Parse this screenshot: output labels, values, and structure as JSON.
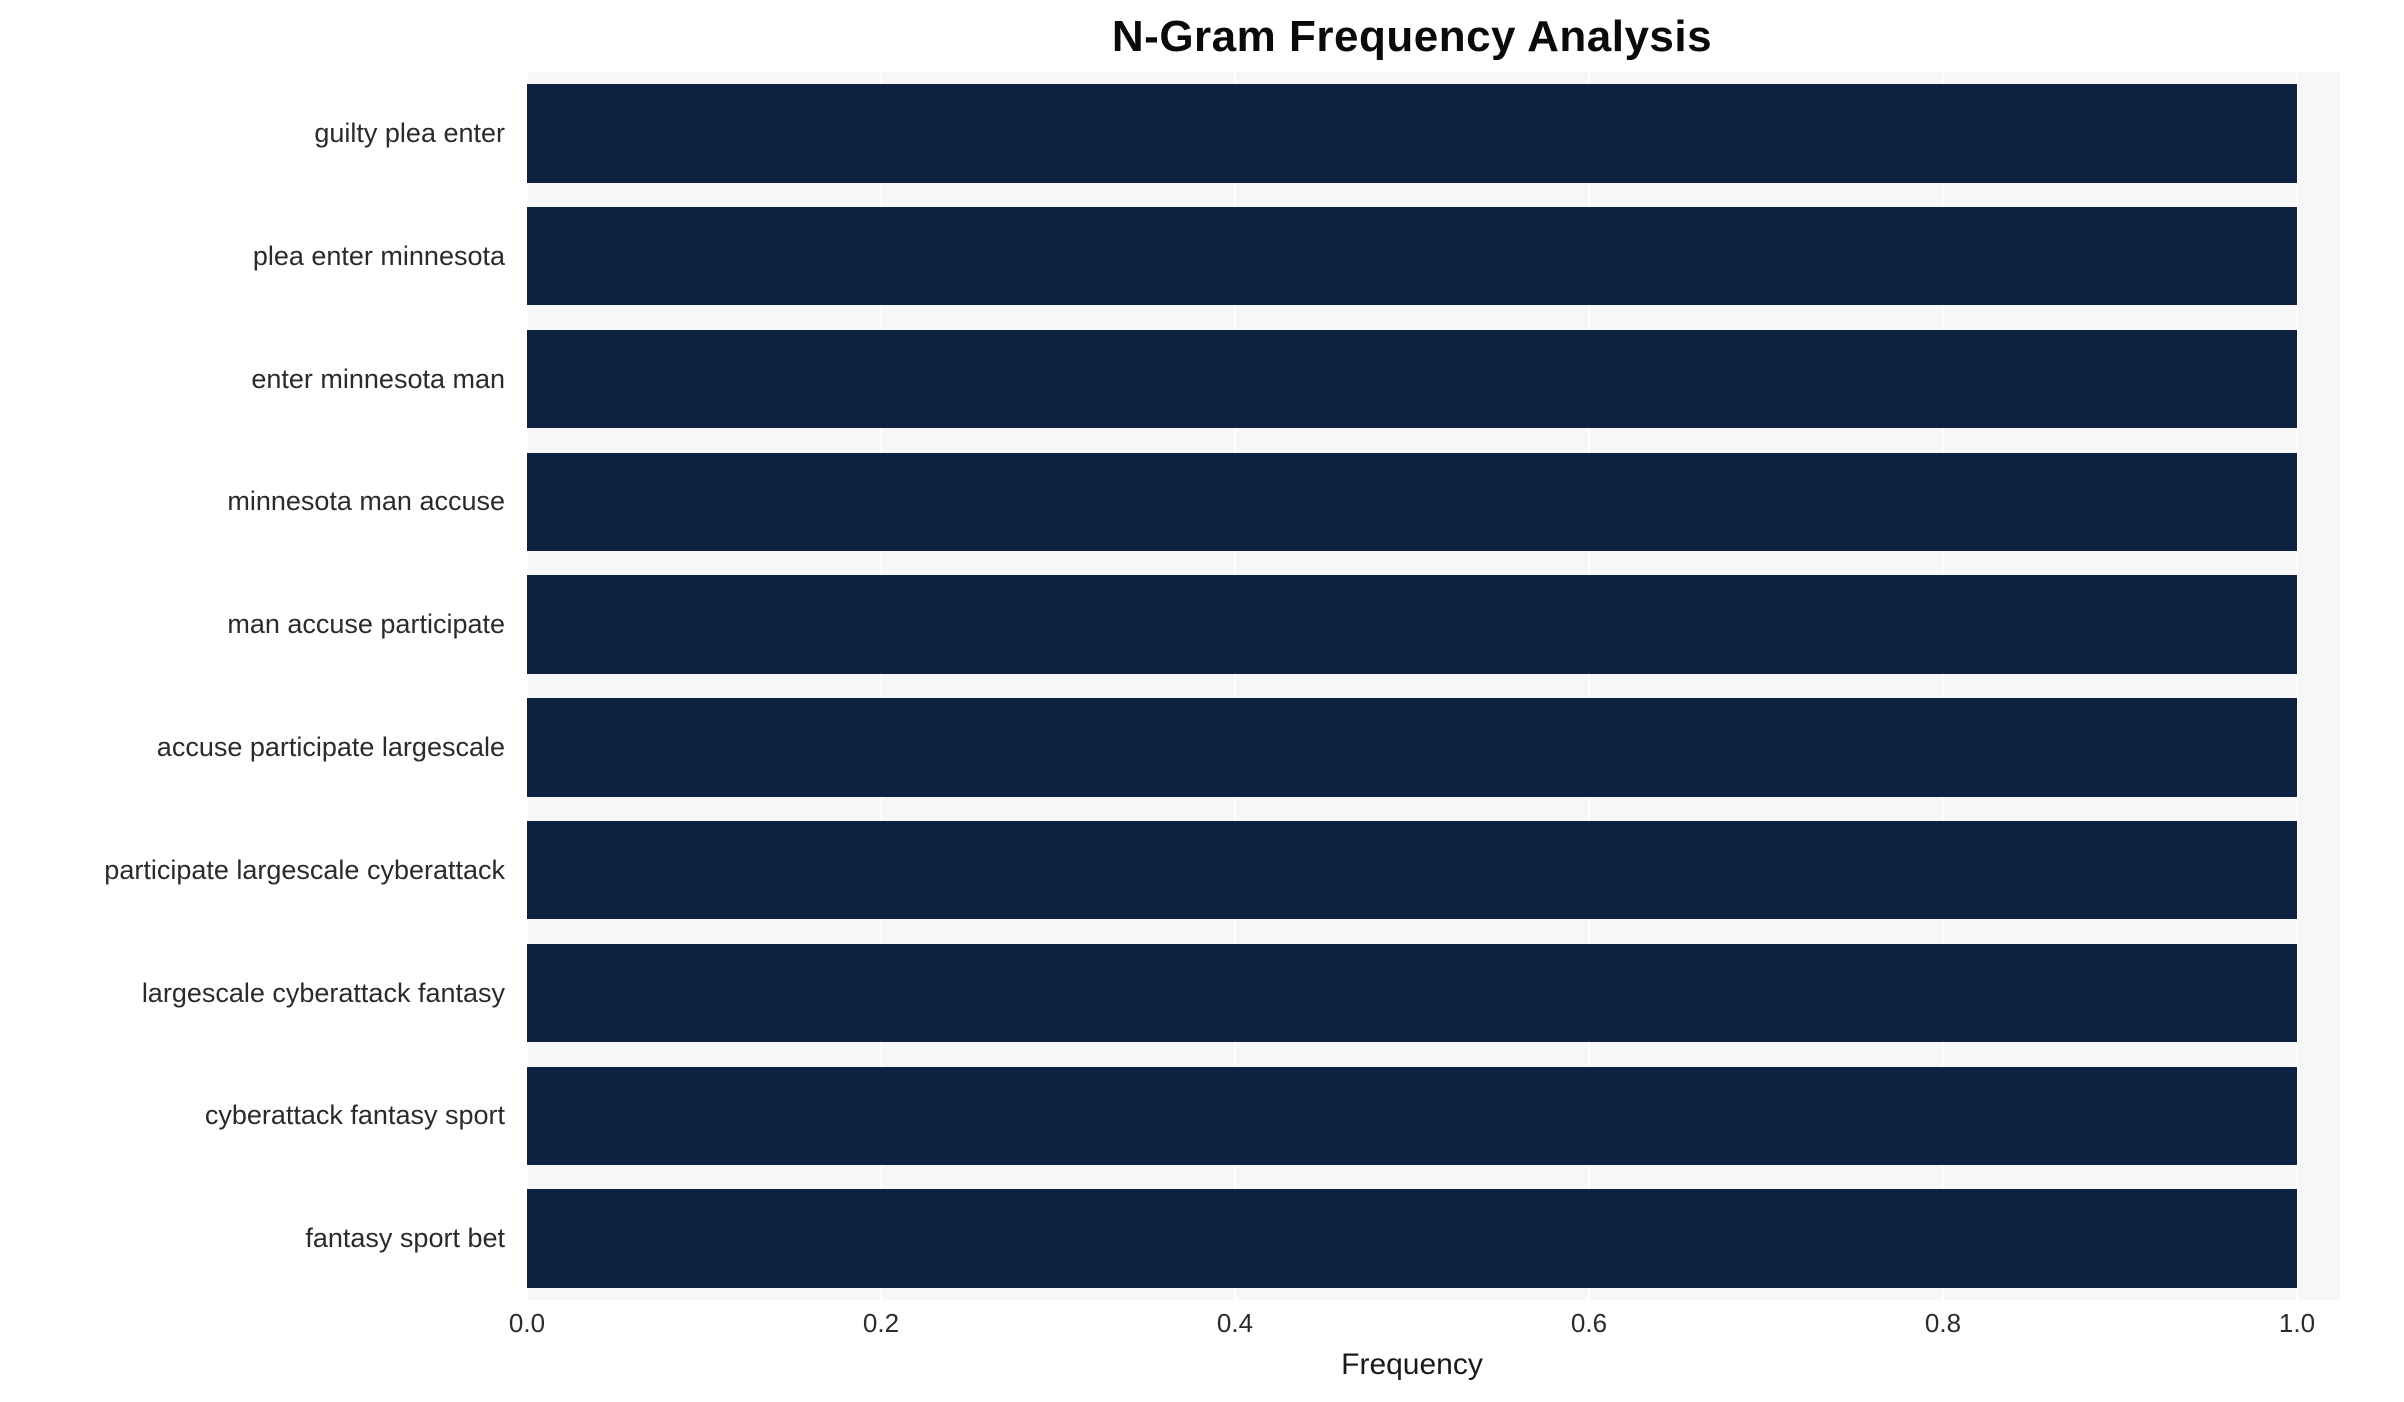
{
  "chart_data": {
    "type": "bar",
    "orientation": "horizontal",
    "title": "N-Gram Frequency Analysis",
    "xlabel": "Frequency",
    "ylabel": "",
    "categories": [
      "guilty plea enter",
      "plea enter minnesota",
      "enter minnesota man",
      "minnesota man accuse",
      "man accuse participate",
      "accuse participate largescale",
      "participate largescale cyberattack",
      "largescale cyberattack fantasy",
      "cyberattack fantasy sport",
      "fantasy sport bet"
    ],
    "values": [
      1.0,
      1.0,
      1.0,
      1.0,
      1.0,
      1.0,
      1.0,
      1.0,
      1.0,
      1.0
    ],
    "xlim": [
      0.0,
      1.0
    ],
    "x_ticks": [
      "0.0",
      "0.2",
      "0.4",
      "0.6",
      "0.8",
      "1.0"
    ],
    "x_tick_values": [
      0.0,
      0.2,
      0.4,
      0.6,
      0.8,
      1.0
    ],
    "grid": true,
    "legend": false,
    "bar_color": "#0d2240",
    "plot_bg_color": "#f7f7f7",
    "grid_color": "#ffffff",
    "text_color": "#2b2b2b"
  }
}
